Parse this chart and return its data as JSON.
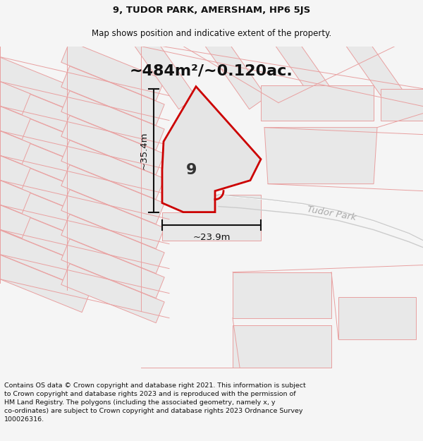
{
  "title_line1": "9, TUDOR PARK, AMERSHAM, HP6 5JS",
  "title_line2": "Map shows position and indicative extent of the property.",
  "area_text": "~484m²/~0.120ac.",
  "label_number": "9",
  "label_road": "Tudor Park",
  "dim_width": "~23.9m",
  "dim_height": "~35.4m",
  "footer_text": "Contains OS data © Crown copyright and database right 2021. This information is subject to Crown copyright and database rights 2023 and is reproduced with the permission of HM Land Registry. The polygons (including the associated geometry, namely x, y co-ordinates) are subject to Crown copyright and database rights 2023 Ordnance Survey 100026316.",
  "bg_color": "#f5f5f5",
  "map_bg": "#ffffff",
  "property_fill": "#e5e5e5",
  "property_edge": "#cc0000",
  "plot_fill": "#e8e8e8",
  "plot_edge": "#e8a0a0",
  "road_text_color": "#aaaaaa"
}
